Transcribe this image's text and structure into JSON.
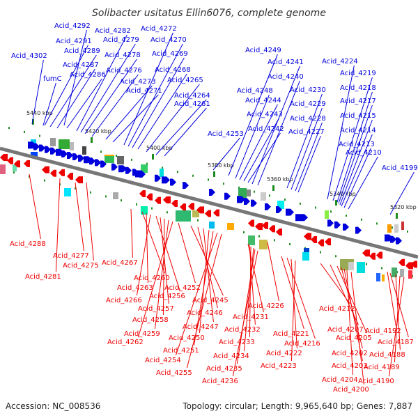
{
  "title": "Solibacter usitatus Ellin6076, complete genome",
  "footer": {
    "accession": "Accession: NC_008536",
    "summary": "Topology: circular; Length: 9,965,640 bp; Genes: 7,887"
  },
  "colors": {
    "forward": "#0000dd",
    "reverse": "#ee0000",
    "backbone": "#777777",
    "tick": "#1e8c1e"
  },
  "kbp_markers": [
    "5440 kbp",
    "5420 kbp",
    "5400 kbp",
    "5380 kbp",
    "5360 kbp",
    "5340 kbp",
    "5320 kbp"
  ],
  "forward_genes": [
    "Acid_4302",
    "Acid_4292",
    "Acid_4291",
    "Acid_4289",
    "fumC",
    "Acid_4287",
    "Acid_4286",
    "Acid_4282",
    "Acid_4279",
    "Acid_4278",
    "Acid_4276",
    "Acid_4273",
    "Acid_4271",
    "Acid_4272",
    "Acid_4270",
    "Acid_4269",
    "Acid_4268",
    "Acid_4265",
    "Acid_4264",
    "Acid_4261",
    "Acid_4253",
    "Acid_4249",
    "Acid_4248",
    "Acid_4244",
    "Acid_4243",
    "Acid_4242",
    "Acid_4241",
    "Acid_4240",
    "Acid_4230",
    "Acid_4229",
    "Acid_4228",
    "Acid_4227",
    "Acid_4224",
    "Acid_4219",
    "Acid_4218",
    "Acid_4217",
    "Acid_4215",
    "Acid_4214",
    "Acid_4213",
    "Acid_4210",
    "Acid_4199"
  ],
  "reverse_genes": [
    "Acid_4288",
    "Acid_4281",
    "Acid_4277",
    "Acid_4275",
    "Acid_4267",
    "Acid_4260",
    "Acid_4263",
    "Acid_4266",
    "Acid_4256",
    "Acid_4257",
    "Acid_4258",
    "Acid_4259",
    "Acid_4262",
    "Acid_4252",
    "Acid_4245",
    "Acid_4246",
    "Acid_4247",
    "Acid_4250",
    "Acid_4251",
    "Acid_4254",
    "Acid_4255",
    "Acid_4226",
    "Acid_4231",
    "Acid_4232",
    "Acid_4233",
    "Acid_4234",
    "Acid_4235",
    "Acid_4236",
    "Acid_4221",
    "Acid_4216",
    "Acid_4222",
    "Acid_4223",
    "Acid_4212",
    "Acid_4207",
    "Acid_4205",
    "Acid_4202",
    "Acid_4203",
    "Acid_4204",
    "Acid_4200",
    "Acid_4192",
    "Acid_4187",
    "Acid_4188",
    "Acid_4189",
    "Acid_4190"
  ]
}
